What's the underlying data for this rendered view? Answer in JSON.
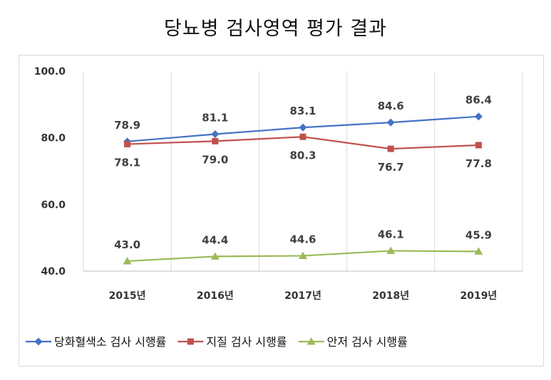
{
  "chart_data": {
    "type": "line",
    "title": "당뇨병 검사영역 평가 결과",
    "categories": [
      "2015년",
      "2016년",
      "2017년",
      "2018년",
      "2019년"
    ],
    "ylim": [
      40,
      100
    ],
    "yticks": [
      40.0,
      60.0,
      80.0,
      100.0
    ],
    "ytick_labels": [
      "40.0",
      "60.0",
      "80.0",
      "100.0"
    ],
    "grid": "vertical",
    "legend_position": "bottom",
    "series": [
      {
        "name": "당화혈색소 검사 시행률",
        "values": [
          78.9,
          81.1,
          83.1,
          84.6,
          86.4
        ],
        "labels": [
          "78.9",
          "81.1",
          "83.1",
          "84.6",
          "86.4"
        ],
        "label_pos": "above",
        "color": "#4472C4",
        "marker": "diamond"
      },
      {
        "name": "지질 검사 시행률",
        "values": [
          78.1,
          79.0,
          80.3,
          76.7,
          77.8
        ],
        "labels": [
          "78.1",
          "79.0",
          "80.3",
          "76.7",
          "77.8"
        ],
        "label_pos": "below",
        "color": "#C0504D",
        "marker": "square"
      },
      {
        "name": "안저 검사 시행률",
        "values": [
          43.0,
          44.4,
          44.6,
          46.1,
          45.9
        ],
        "labels": [
          "43.0",
          "44.4",
          "44.6",
          "46.1",
          "45.9"
        ],
        "label_pos": "above",
        "color": "#9BBB59",
        "marker": "triangle"
      }
    ]
  }
}
